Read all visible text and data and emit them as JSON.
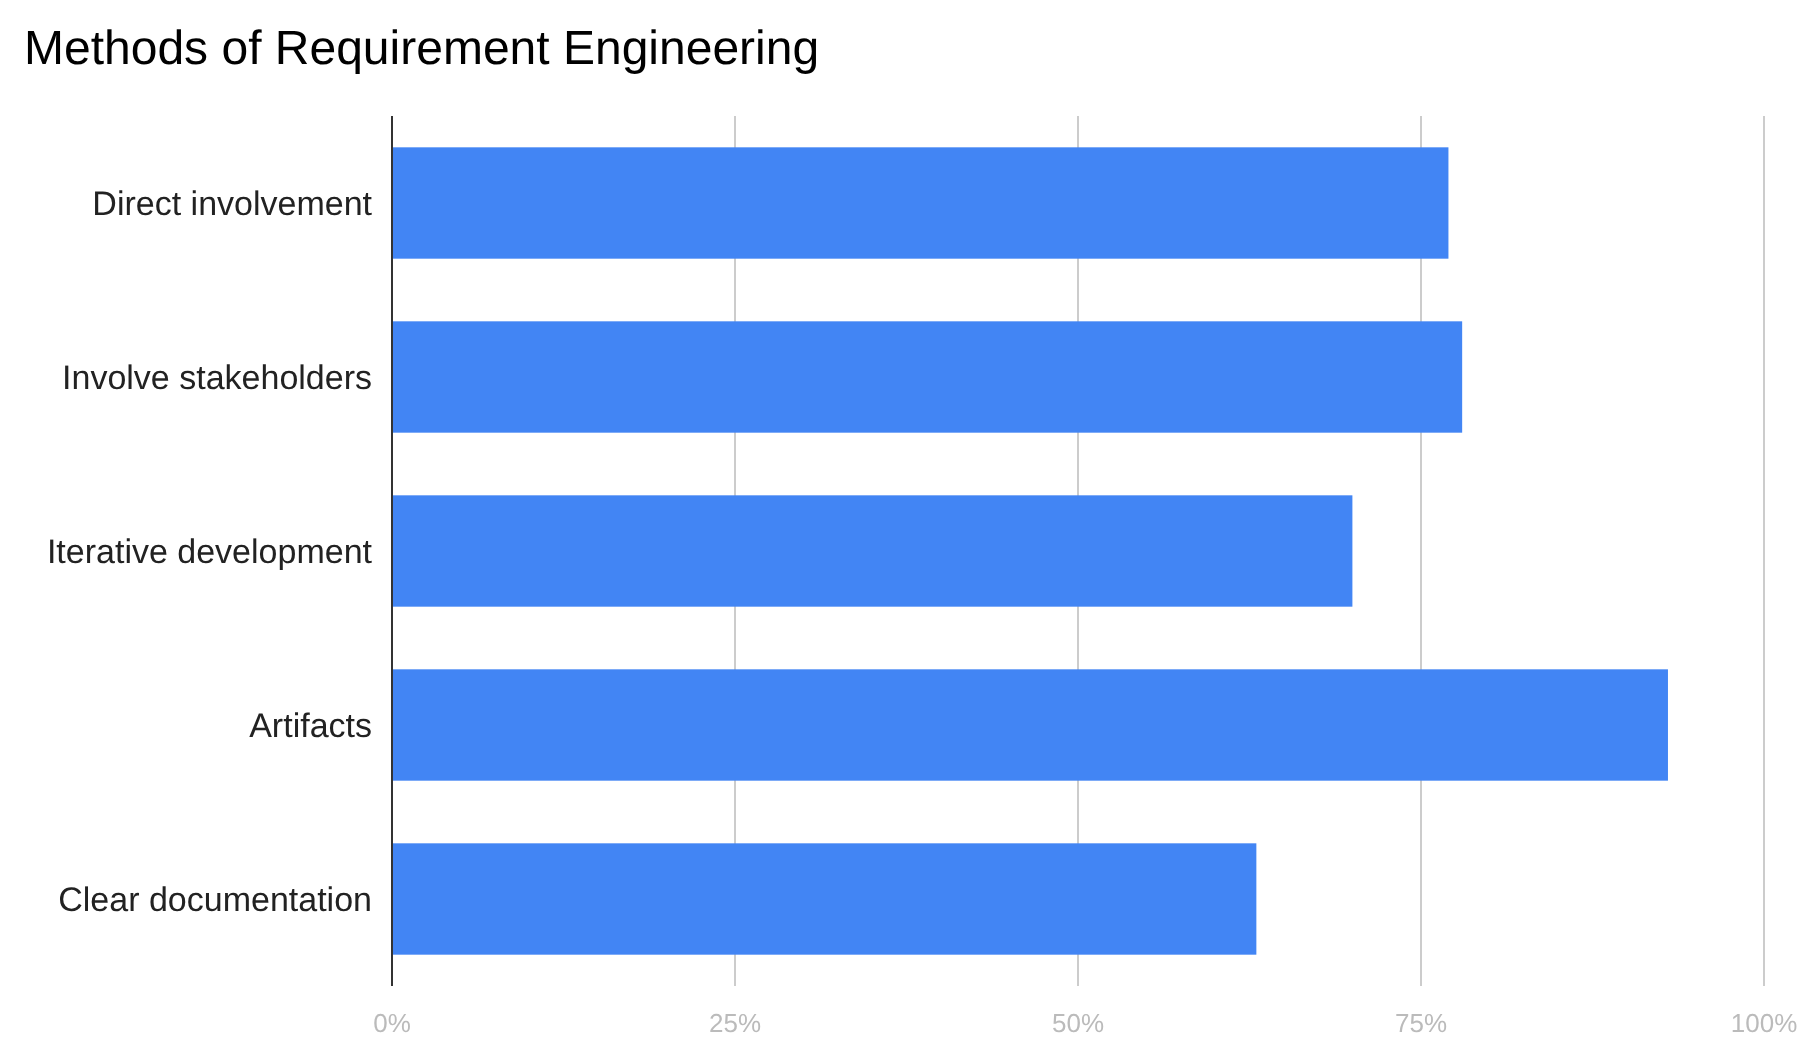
{
  "chart_data": {
    "type": "bar",
    "title": "Methods of Requirement Engineering",
    "orientation": "horizontal",
    "categories": [
      "Direct involvement",
      "Involve stakeholders",
      "Iterative development",
      "Artifacts",
      "Clear documentation"
    ],
    "values": [
      77,
      78,
      70,
      93,
      63
    ],
    "color": "#4285f4",
    "xlim": [
      0,
      100
    ],
    "xticks": [
      {
        "value": 0,
        "label": "0%"
      },
      {
        "value": 25,
        "label": "25%"
      },
      {
        "value": 50,
        "label": "50%"
      },
      {
        "value": 75,
        "label": "75%"
      },
      {
        "value": 100,
        "label": "100%"
      }
    ],
    "grid": "x"
  }
}
